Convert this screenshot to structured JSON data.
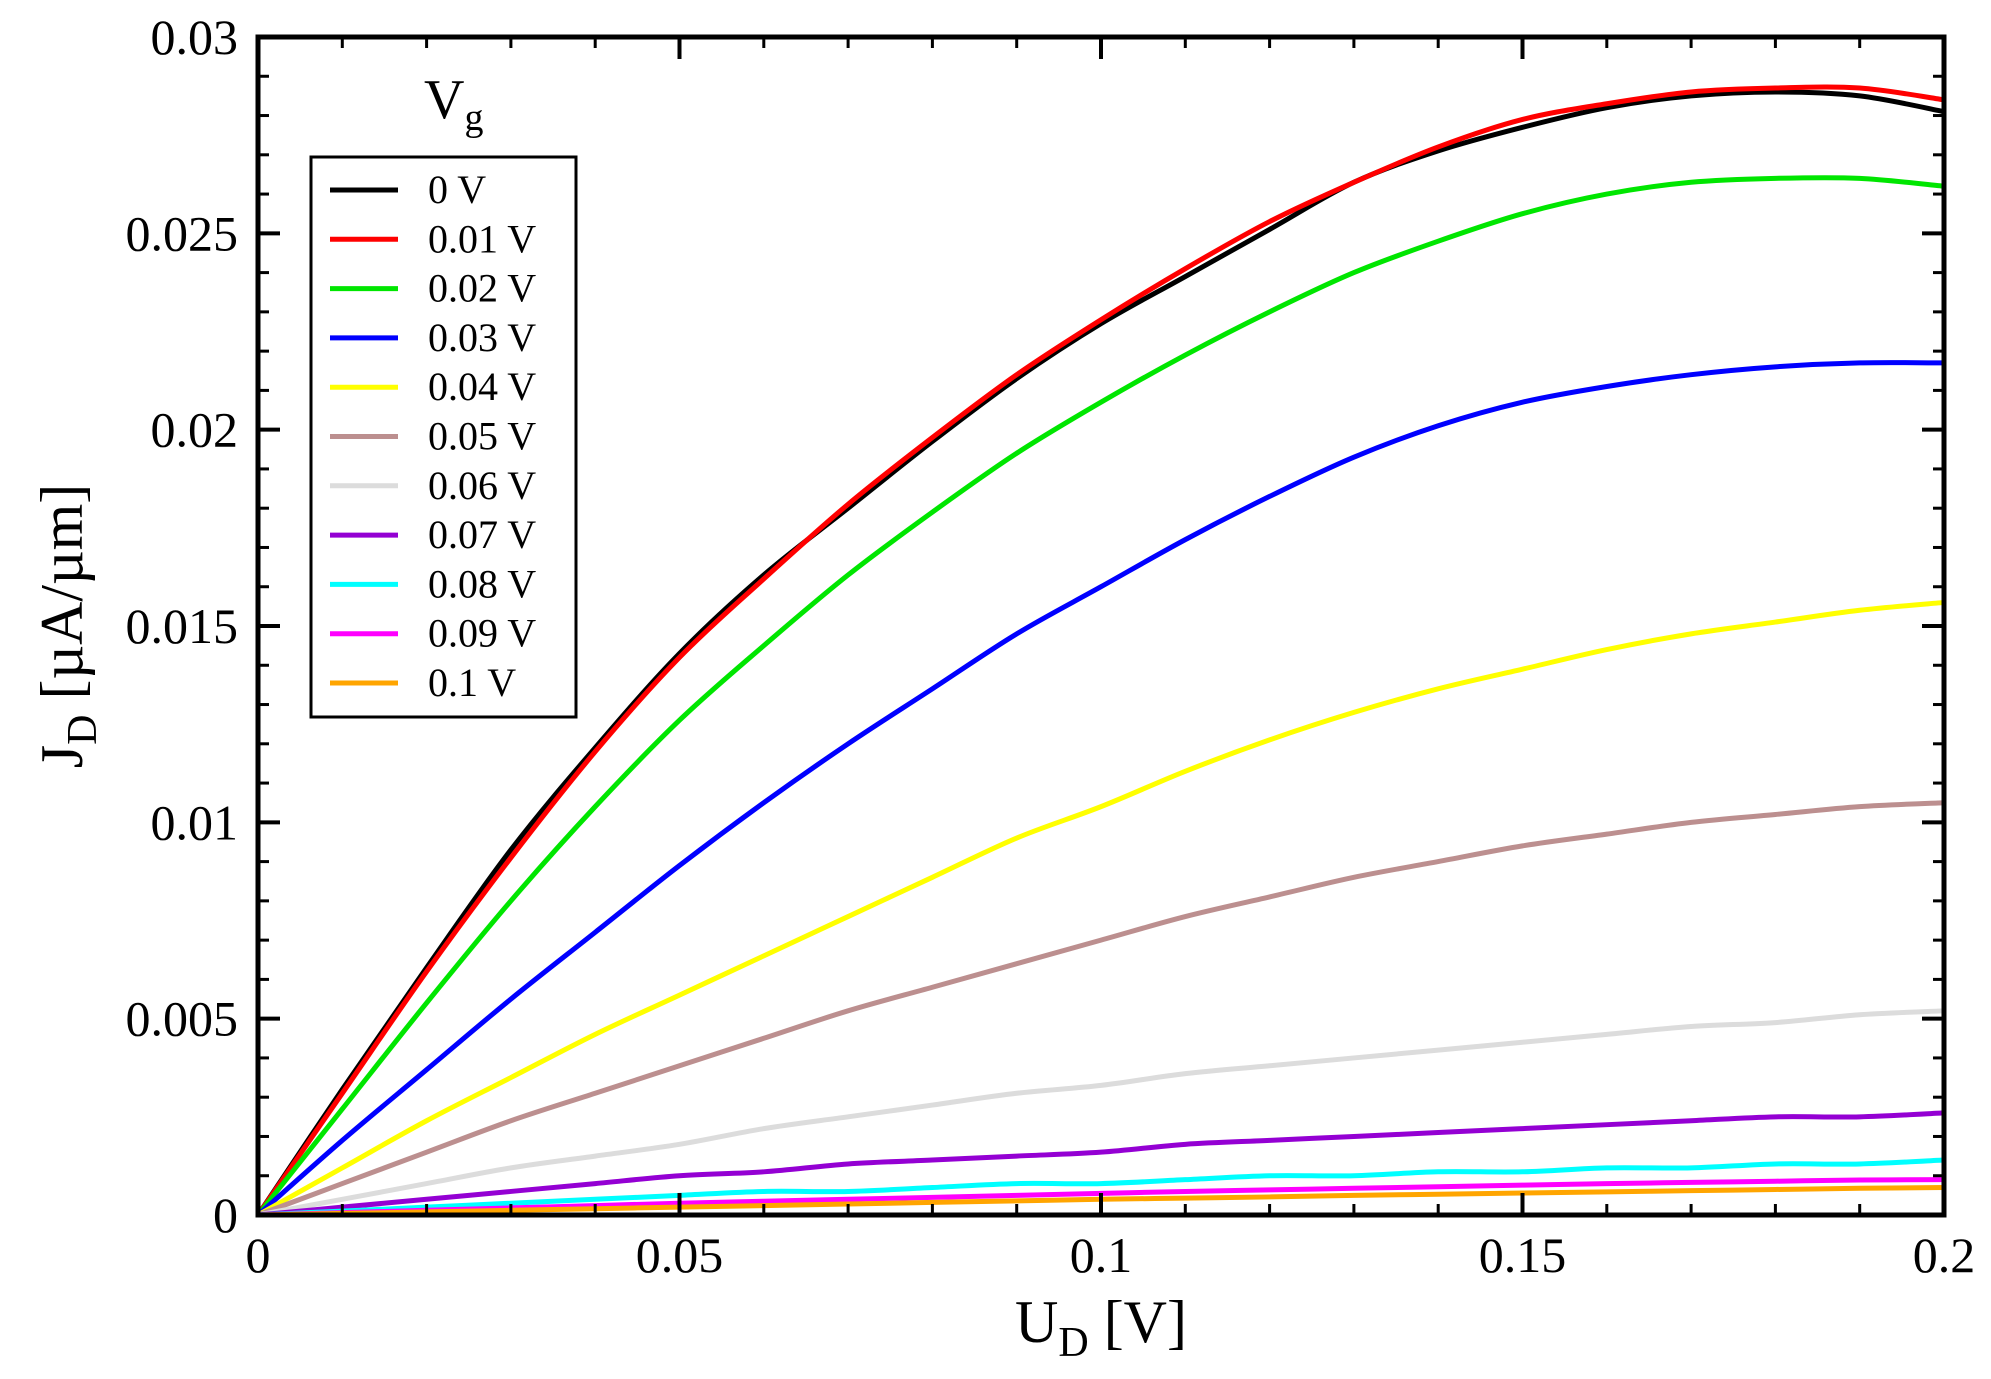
{
  "chart_data": {
    "type": "line",
    "title": "",
    "xlabel": "U",
    "xlabel_sub": "D",
    "xlabel_unit": " [V]",
    "ylabel": "J",
    "ylabel_sub": "D",
    "ylabel_unit": " [µA/µm]",
    "xlim": [
      0,
      0.2
    ],
    "ylim": [
      0,
      0.03
    ],
    "xticks": [
      0,
      0.05,
      0.1,
      0.15,
      0.2
    ],
    "xtick_labels": [
      "0",
      "0.05",
      "0.1",
      "0.15",
      "0.2"
    ],
    "yticks": [
      0,
      0.005,
      0.01,
      0.015,
      0.02,
      0.025,
      0.03
    ],
    "ytick_labels": [
      "0",
      "0.005",
      "0.01",
      "0.015",
      "0.02",
      "0.025",
      "0.03"
    ],
    "grid": false,
    "legend_title": "V",
    "legend_title_sub": "g",
    "legend_position": "top-left",
    "x": [
      0,
      0.01,
      0.02,
      0.03,
      0.04,
      0.05,
      0.06,
      0.07,
      0.08,
      0.09,
      0.1,
      0.11,
      0.12,
      0.13,
      0.14,
      0.15,
      0.16,
      0.17,
      0.18,
      0.19,
      0.2
    ],
    "series": [
      {
        "name": "0 V",
        "color": "#000000",
        "values": [
          0,
          0.0032,
          0.0063,
          0.0093,
          0.0119,
          0.0143,
          0.0163,
          0.018,
          0.0197,
          0.0213,
          0.0227,
          0.0239,
          0.0251,
          0.0263,
          0.0271,
          0.0277,
          0.0282,
          0.0285,
          0.0286,
          0.0285,
          0.0281
        ]
      },
      {
        "name": "0.01 V",
        "color": "#ff0000",
        "values": [
          0,
          0.0031,
          0.0062,
          0.0091,
          0.0118,
          0.0142,
          0.0162,
          0.0181,
          0.0198,
          0.0214,
          0.0228,
          0.0241,
          0.0253,
          0.0263,
          0.0272,
          0.0279,
          0.0283,
          0.0286,
          0.0287,
          0.0287,
          0.0284
        ]
      },
      {
        "name": "0.02 V",
        "color": "#00e600",
        "values": [
          0,
          0.0027,
          0.0054,
          0.008,
          0.0104,
          0.0126,
          0.0145,
          0.0163,
          0.0179,
          0.0194,
          0.0207,
          0.0219,
          0.023,
          0.024,
          0.0248,
          0.0255,
          0.026,
          0.0263,
          0.0264,
          0.0264,
          0.0262
        ]
      },
      {
        "name": "0.03 V",
        "color": "#0000ff",
        "values": [
          0,
          0.0019,
          0.0037,
          0.0055,
          0.0072,
          0.0089,
          0.0105,
          0.012,
          0.0134,
          0.0148,
          0.016,
          0.0172,
          0.0183,
          0.0193,
          0.0201,
          0.0207,
          0.0211,
          0.0214,
          0.0216,
          0.0217,
          0.0217
        ]
      },
      {
        "name": "0.04 V",
        "color": "#ffff00",
        "values": [
          0,
          0.0012,
          0.0024,
          0.0035,
          0.0046,
          0.0056,
          0.0066,
          0.0076,
          0.0086,
          0.0096,
          0.0104,
          0.0113,
          0.0121,
          0.0128,
          0.0134,
          0.0139,
          0.0144,
          0.0148,
          0.0151,
          0.0154,
          0.0156
        ]
      },
      {
        "name": "0.05 V",
        "color": "#bc8f8f",
        "values": [
          0,
          0.0008,
          0.0016,
          0.0024,
          0.0031,
          0.0038,
          0.0045,
          0.0052,
          0.0058,
          0.0064,
          0.007,
          0.0076,
          0.0081,
          0.0086,
          0.009,
          0.0094,
          0.0097,
          0.01,
          0.0102,
          0.0104,
          0.0105
        ]
      },
      {
        "name": "0.06 V",
        "color": "#dcdcdc",
        "values": [
          0,
          0.0004,
          0.0008,
          0.0012,
          0.0015,
          0.0018,
          0.0022,
          0.0025,
          0.0028,
          0.0031,
          0.0033,
          0.0036,
          0.0038,
          0.004,
          0.0042,
          0.0044,
          0.0046,
          0.0048,
          0.0049,
          0.0051,
          0.0052
        ]
      },
      {
        "name": "0.07 V",
        "color": "#9400d3",
        "values": [
          0,
          0.0002,
          0.0004,
          0.0006,
          0.0008,
          0.001,
          0.0011,
          0.0013,
          0.0014,
          0.0015,
          0.0016,
          0.0018,
          0.0019,
          0.002,
          0.0021,
          0.0022,
          0.0023,
          0.0024,
          0.0025,
          0.0025,
          0.0026
        ]
      },
      {
        "name": "0.08 V",
        "color": "#00ffff",
        "values": [
          0,
          0.0001,
          0.0002,
          0.0003,
          0.0004,
          0.0005,
          0.0006,
          0.0006,
          0.0007,
          0.0008,
          0.0008,
          0.0009,
          0.001,
          0.001,
          0.0011,
          0.0011,
          0.0012,
          0.0012,
          0.0013,
          0.0013,
          0.0014
        ]
      },
      {
        "name": "0.09 V",
        "color": "#ff00ff",
        "values": [
          0,
          6e-05,
          0.00012,
          0.00018,
          0.00024,
          0.0003,
          0.00035,
          0.0004,
          0.00045,
          0.0005,
          0.00055,
          0.0006,
          0.00064,
          0.00068,
          0.00072,
          0.00076,
          0.0008,
          0.00083,
          0.00086,
          0.00089,
          0.0009
        ]
      },
      {
        "name": "0.1 V",
        "color": "#ffa500",
        "values": [
          0,
          4e-05,
          8e-05,
          0.00012,
          0.00016,
          0.0002,
          0.00024,
          0.00028,
          0.00032,
          0.00036,
          0.0004,
          0.00043,
          0.00046,
          0.0005,
          0.00053,
          0.00056,
          0.00059,
          0.00062,
          0.00065,
          0.00068,
          0.0007
        ]
      }
    ]
  }
}
